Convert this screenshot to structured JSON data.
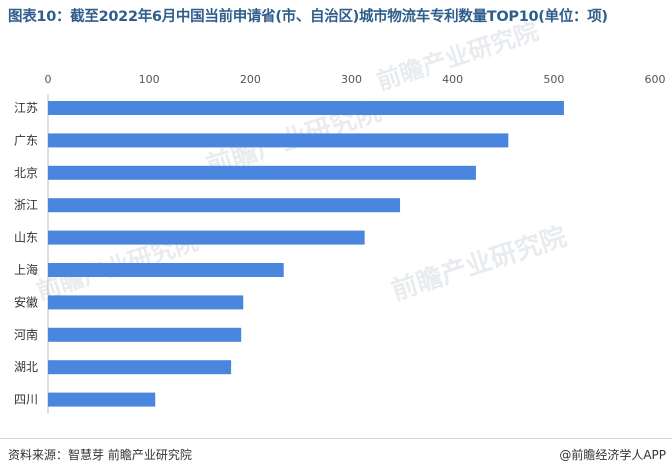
{
  "title": "图表10：截至2022年6月中国当前申请省(市、自治区)城市物流车专利数量TOP10(单位：项)",
  "source": "资料来源：智慧芽 前瞻产业研究院",
  "brand": "@前瞻经济学人APP",
  "watermark": "前瞻产业研究院",
  "colors": {
    "bar": "#4a86de",
    "title": "#2f5e8c"
  },
  "chart_data": {
    "type": "bar",
    "orientation": "horizontal",
    "categories": [
      "江苏",
      "广东",
      "北京",
      "浙江",
      "山东",
      "上海",
      "安徽",
      "河南",
      "湖北",
      "四川"
    ],
    "values": [
      510,
      455,
      423,
      348,
      313,
      233,
      193,
      191,
      181,
      106
    ],
    "xlim": [
      0,
      600
    ],
    "xticks": [
      0,
      100,
      200,
      300,
      400,
      500,
      600
    ],
    "x_axis_position": "top",
    "grid": false,
    "legend": "none"
  }
}
